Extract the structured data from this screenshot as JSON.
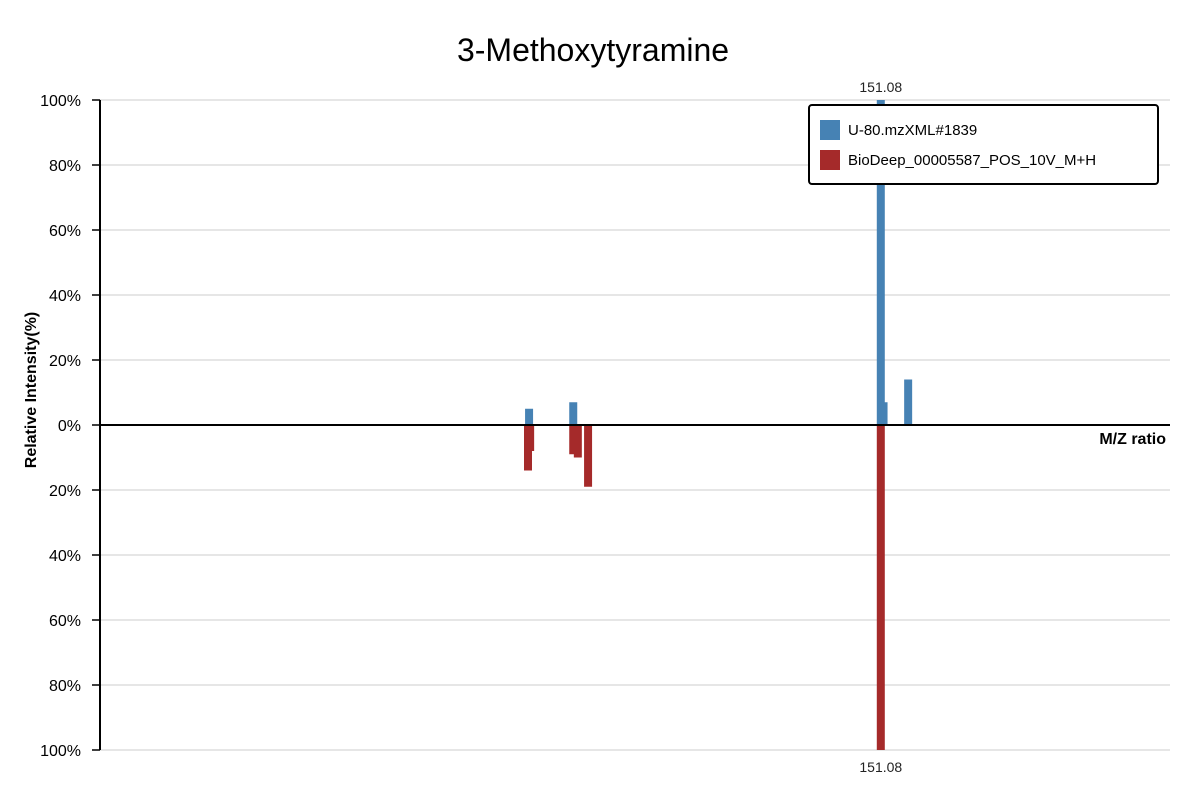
{
  "chart_data": {
    "type": "bar",
    "title": "3-Methoxytyramine",
    "xlabel": "M/Z ratio",
    "ylabel": "Relative Intensity(%)",
    "ylim": [
      -100,
      100
    ],
    "y_ticks": [
      {
        "value": 100,
        "label": "100%"
      },
      {
        "value": 80,
        "label": "80%"
      },
      {
        "value": 60,
        "label": "60%"
      },
      {
        "value": 40,
        "label": "40%"
      },
      {
        "value": 20,
        "label": "20%"
      },
      {
        "value": 0,
        "label": "0%"
      },
      {
        "value": -20,
        "label": "20%"
      },
      {
        "value": -40,
        "label": "40%"
      },
      {
        "value": -60,
        "label": "60%"
      },
      {
        "value": -80,
        "label": "80%"
      },
      {
        "value": -100,
        "label": "100%"
      }
    ],
    "grid": true,
    "legend_position": "top-right",
    "colors": {
      "query": "#4682b4",
      "reference": "#a52a2a"
    },
    "series": [
      {
        "name": "U-80.mzXML#1839",
        "direction": "up",
        "peaks": [
          {
            "mz": 128.07,
            "intensity": 5
          },
          {
            "mz": 130.96,
            "intensity": 7
          },
          {
            "mz": 151.08,
            "intensity": 100
          },
          {
            "mz": 151.26,
            "intensity": 7
          },
          {
            "mz": 152.87,
            "intensity": 14
          }
        ]
      },
      {
        "name": "BioDeep_00005587_POS_10V_M+H",
        "direction": "down",
        "peaks": [
          {
            "mz": 128.0,
            "intensity": 14
          },
          {
            "mz": 128.14,
            "intensity": 8
          },
          {
            "mz": 130.96,
            "intensity": 9
          },
          {
            "mz": 131.26,
            "intensity": 10
          },
          {
            "mz": 131.93,
            "intensity": 19
          },
          {
            "mz": 151.08,
            "intensity": 100
          }
        ]
      }
    ],
    "annotations": [
      {
        "text": "151.08",
        "series": 0,
        "mz": 151.08
      },
      {
        "text": "151.08",
        "series": 1,
        "mz": 151.08
      }
    ]
  }
}
